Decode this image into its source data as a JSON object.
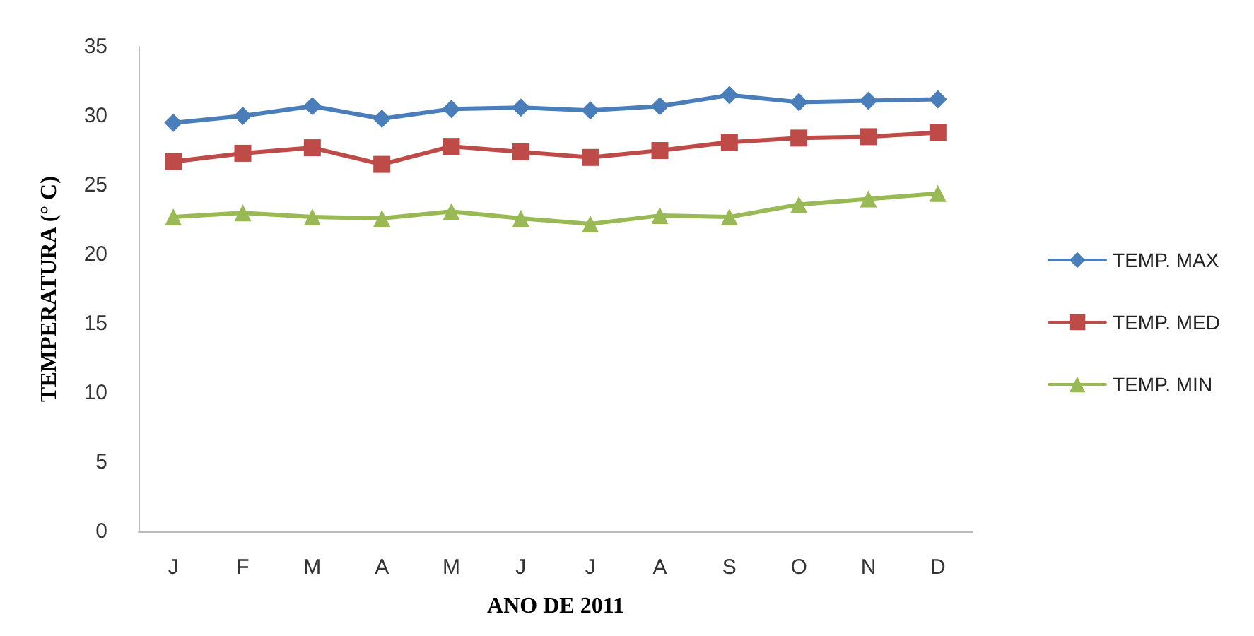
{
  "chart_data": {
    "type": "line",
    "xlabel": "ANO DE 2011",
    "ylabel": "TEMPERATURA (° C)",
    "categories": [
      "J",
      "F",
      "M",
      "A",
      "M",
      "J",
      "J",
      "A",
      "S",
      "O",
      "N",
      "D"
    ],
    "ylim": [
      0,
      35
    ],
    "yticks": [
      0,
      5,
      10,
      15,
      20,
      25,
      30,
      35
    ],
    "grid": false,
    "legend": "right",
    "line_style": "solid",
    "series": [
      {
        "name": "TEMP. MAX",
        "color": "#4a7ebb",
        "marker": "diamond",
        "values": [
          29.5,
          30.0,
          30.7,
          29.8,
          30.5,
          30.6,
          30.4,
          30.7,
          31.5,
          31.0,
          31.1,
          31.2
        ]
      },
      {
        "name": "TEMP. MED",
        "color": "#be4b48",
        "marker": "square",
        "values": [
          26.7,
          27.3,
          27.7,
          26.5,
          27.8,
          27.4,
          27.0,
          27.5,
          28.1,
          28.4,
          28.5,
          28.8
        ]
      },
      {
        "name": "TEMP. MIN",
        "color": "#98b954",
        "marker": "triangle",
        "values": [
          22.7,
          23.0,
          22.7,
          22.6,
          23.1,
          22.6,
          22.2,
          22.8,
          22.7,
          23.6,
          24.0,
          24.4
        ]
      }
    ]
  }
}
